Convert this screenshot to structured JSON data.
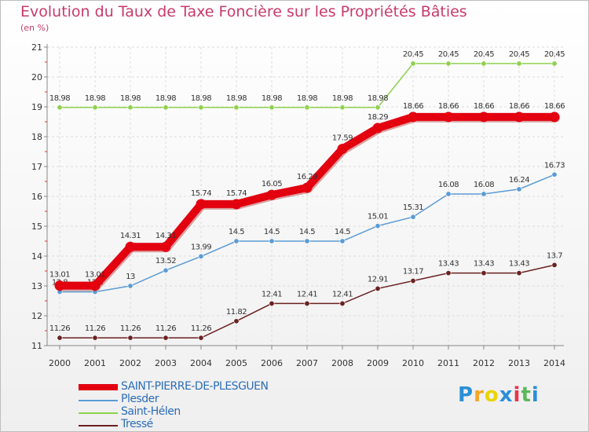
{
  "header": {
    "title": "Evolution du Taux de Taxe Foncière sur les Propriétés Bâties",
    "subtitle": "(en %)"
  },
  "logo": {
    "text": "Proxiti",
    "letters": [
      "P",
      "r",
      "o",
      "x",
      "i",
      "t",
      "i"
    ],
    "colors": [
      "#2a8fd6",
      "#f5a623",
      "#e8d400",
      "#2a8fd6",
      "#e8344e",
      "#5cb85c",
      "#2a8fd6"
    ]
  },
  "chart_data": {
    "type": "line",
    "title": "Evolution du Taux de Taxe Foncière sur les Propriétés Bâties",
    "ylabel": "(en %)",
    "xlabel": "",
    "x": [
      2000,
      2001,
      2002,
      2003,
      2004,
      2005,
      2006,
      2007,
      2008,
      2009,
      2010,
      2011,
      2012,
      2013,
      2014
    ],
    "ylim": [
      11,
      21
    ],
    "yticks": [
      11,
      12,
      13,
      14,
      15,
      16,
      17,
      18,
      19,
      20,
      21
    ],
    "grid": true,
    "legend_position": "bottom-left",
    "series": [
      {
        "name": "SAINT-PIERRE-DE-PLESGUEN",
        "color": "#e3000f",
        "emphasis": true,
        "values": [
          13.01,
          13.01,
          14.31,
          14.31,
          15.74,
          15.74,
          16.05,
          16.29,
          17.59,
          18.29,
          18.66,
          18.66,
          18.66,
          18.66,
          18.66
        ]
      },
      {
        "name": "Plesder",
        "color": "#5b9bd5",
        "values": [
          12.8,
          12.8,
          13,
          13.52,
          13.99,
          14.5,
          14.5,
          14.5,
          14.5,
          15.01,
          15.31,
          16.08,
          16.08,
          16.24,
          16.73
        ]
      },
      {
        "name": "Saint-Hélen",
        "color": "#8fd14f",
        "values": [
          18.98,
          18.98,
          18.98,
          18.98,
          18.98,
          18.98,
          18.98,
          18.98,
          18.98,
          18.98,
          20.45,
          20.45,
          20.45,
          20.45,
          20.45
        ]
      },
      {
        "name": "Tressé",
        "color": "#6b2121",
        "values": [
          11.26,
          11.26,
          11.26,
          11.26,
          11.26,
          11.82,
          12.41,
          12.41,
          12.41,
          12.91,
          13.17,
          13.43,
          13.43,
          13.43,
          13.7
        ]
      }
    ]
  }
}
